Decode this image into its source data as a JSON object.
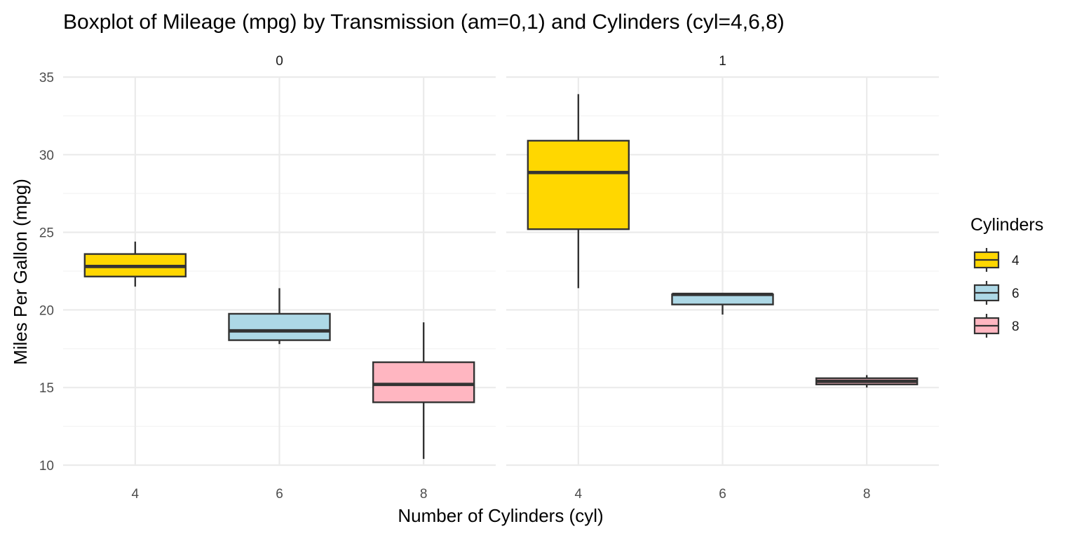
{
  "chart_data": {
    "type": "boxplot",
    "title": "Boxplot of Mileage (mpg) by Transmission (am=0,1) and Cylinders (cyl=4,6,8)",
    "xlabel": "Number of Cylinders (cyl)",
    "ylabel": "Miles Per Gallon (mpg)",
    "ylim": [
      10,
      35
    ],
    "yticks": [
      10,
      15,
      20,
      25,
      30,
      35
    ],
    "categories": [
      "4",
      "6",
      "8"
    ],
    "grid": true,
    "legend": {
      "title": "Cylinders",
      "position": "right",
      "items": [
        {
          "label": "4",
          "color": "#FFD700"
        },
        {
          "label": "6",
          "color": "#ADD8E6"
        },
        {
          "label": "8",
          "color": "#FFB6C1"
        }
      ]
    },
    "facets": [
      {
        "label": "0",
        "boxes": [
          {
            "category": "4",
            "min": 21.5,
            "q1": 22.15,
            "median": 22.8,
            "q3": 23.6,
            "max": 24.4
          },
          {
            "category": "6",
            "min": 17.8,
            "q1": 18.05,
            "median": 18.65,
            "q3": 19.75,
            "max": 21.4
          },
          {
            "category": "8",
            "min": 10.4,
            "q1": 14.05,
            "median": 15.2,
            "q3": 16.63,
            "max": 19.2
          }
        ]
      },
      {
        "label": "1",
        "boxes": [
          {
            "category": "4",
            "min": 21.4,
            "q1": 25.2,
            "median": 28.85,
            "q3": 30.9,
            "max": 33.9
          },
          {
            "category": "6",
            "min": 19.7,
            "q1": 20.35,
            "median": 21.0,
            "q3": 21.0,
            "max": 21.0
          },
          {
            "category": "8",
            "min": 15.0,
            "q1": 15.2,
            "median": 15.4,
            "q3": 15.6,
            "max": 15.8
          }
        ]
      }
    ]
  }
}
